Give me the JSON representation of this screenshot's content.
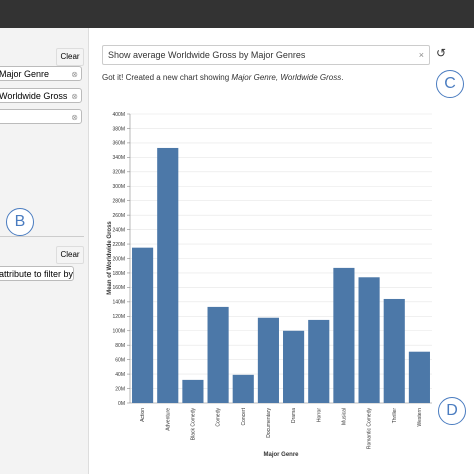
{
  "left_panel": {
    "clear_top": "Clear",
    "chips": [
      "Major Genre",
      "Worldwide Gross",
      ""
    ],
    "clear_bottom": "Clear",
    "filter_placeholder": "attribute to filter by"
  },
  "query": {
    "text": "Show average Worldwide Gross by Major Genres",
    "clear_icon": "×",
    "refresh_icon": "↺"
  },
  "message": {
    "prefix": "Got it! Created a new chart showing ",
    "emphasis": "Major Genre, Worldwide Gross",
    "suffix": "."
  },
  "annotations": {
    "b": "B",
    "c": "C",
    "d": "D"
  },
  "chart_data": {
    "type": "bar",
    "x_label": "Major Genre",
    "y_label": "Mean of Worldwide Gross",
    "color": "#4c78a8",
    "grid": true,
    "categories": [
      "Action",
      "Adventure",
      "Black Comedy",
      "Comedy",
      "Concert",
      "Documentary",
      "Drama",
      "Horror",
      "Musical",
      "Romantic Comedy",
      "Thriller",
      "Western"
    ],
    "values": [
      215000000,
      353000000,
      32000000,
      133000000,
      39000000,
      118000000,
      100000000,
      115000000,
      187000000,
      174000000,
      144000000,
      71000000
    ],
    "ylim": [
      0,
      400000000
    ],
    "yticks": [
      {
        "value": 0,
        "label": "0M"
      },
      {
        "value": 20000000,
        "label": "20M"
      },
      {
        "value": 40000000,
        "label": "40M"
      },
      {
        "value": 60000000,
        "label": "60M"
      },
      {
        "value": 80000000,
        "label": "80M"
      },
      {
        "value": 100000000,
        "label": "100M"
      },
      {
        "value": 120000000,
        "label": "120M"
      },
      {
        "value": 140000000,
        "label": "140M"
      },
      {
        "value": 160000000,
        "label": "160M"
      },
      {
        "value": 180000000,
        "label": "180M"
      },
      {
        "value": 200000000,
        "label": "200M"
      },
      {
        "value": 220000000,
        "label": "220M"
      },
      {
        "value": 240000000,
        "label": "240M"
      },
      {
        "value": 260000000,
        "label": "260M"
      },
      {
        "value": 280000000,
        "label": "280M"
      },
      {
        "value": 300000000,
        "label": "300M"
      },
      {
        "value": 320000000,
        "label": "320M"
      },
      {
        "value": 340000000,
        "label": "340M"
      },
      {
        "value": 360000000,
        "label": "360M"
      },
      {
        "value": 380000000,
        "label": "380M"
      },
      {
        "value": 400000000,
        "label": "400M"
      }
    ]
  }
}
